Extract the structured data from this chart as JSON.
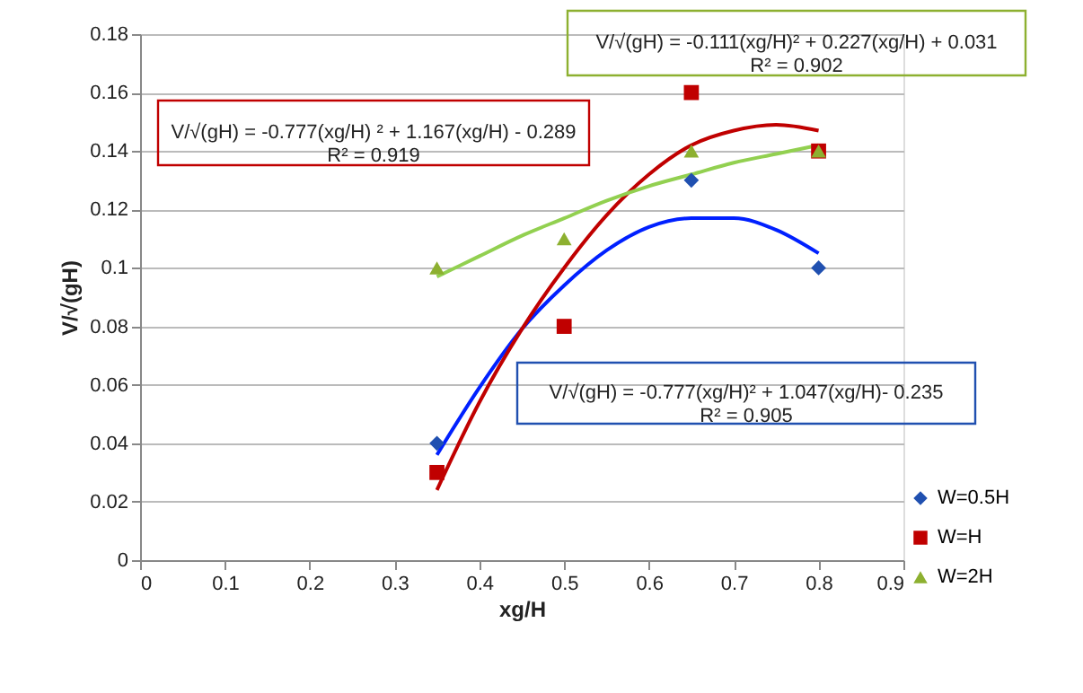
{
  "chart_data": {
    "type": "scatter",
    "xlabel": "xg/H",
    "ylabel": "V/√(gH)",
    "x": [
      0.35,
      0.5,
      0.65,
      0.8
    ],
    "series": [
      {
        "name": "W=0.5H",
        "color": "#2050b0",
        "marker": "diamond",
        "values": [
          0.04,
          null,
          0.13,
          0.1
        ]
      },
      {
        "name": "W=H",
        "color": "#c00000",
        "marker": "square",
        "values": [
          0.03,
          0.08,
          0.16,
          0.14
        ]
      },
      {
        "name": "W=2H",
        "color": "#8db030",
        "marker": "triangle",
        "values": [
          0.1,
          0.11,
          0.14,
          0.14
        ]
      },
      {
        "type": "line",
        "color": "#0020ff",
        "x": [
          0.35,
          0.4,
          0.45,
          0.5,
          0.55,
          0.6,
          0.65,
          0.7,
          0.75,
          0.8
        ],
        "values": [
          0.036,
          0.059,
          0.079,
          0.094,
          0.106,
          0.114,
          0.117,
          0.117,
          0.113,
          0.105
        ]
      },
      {
        "type": "line",
        "color": "#c00000",
        "x": [
          0.35,
          0.4,
          0.45,
          0.5,
          0.55,
          0.6,
          0.65,
          0.7,
          0.75,
          0.8
        ],
        "values": [
          0.024,
          0.054,
          0.079,
          0.1,
          0.118,
          0.132,
          0.142,
          0.147,
          0.149,
          0.147
        ]
      },
      {
        "type": "line",
        "color": "#92d050",
        "x": [
          0.35,
          0.4,
          0.45,
          0.5,
          0.55,
          0.6,
          0.65,
          0.7,
          0.75,
          0.8
        ],
        "values": [
          0.097,
          0.104,
          0.111,
          0.117,
          0.123,
          0.128,
          0.132,
          0.136,
          0.139,
          0.142
        ]
      }
    ],
    "xlim": [
      0,
      0.9
    ],
    "xticks": [
      0,
      0.1,
      0.2,
      0.3,
      0.4,
      0.5,
      0.6,
      0.7,
      0.8,
      0.9
    ],
    "ylim": [
      0,
      0.18
    ],
    "yticks": [
      0,
      0.02,
      0.04,
      0.06,
      0.08,
      0.1,
      0.12,
      0.14,
      0.16,
      0.18
    ],
    "grid": "y",
    "legend": "bottom right",
    "annotations": [
      "V/√(gH)  = -0.111(xg/H)² + 0.227(xg/H) + 0.031\nR² = 0.902",
      "V/√(gH) = -0.777(xg/H) ² + 1.167(xg/H) - 0.289\nR² = 0.919",
      "V/√(gH)  = -0.777(xg/H)² + 1.047(xg/H)- 0.235\nR² = 0.905"
    ]
  }
}
